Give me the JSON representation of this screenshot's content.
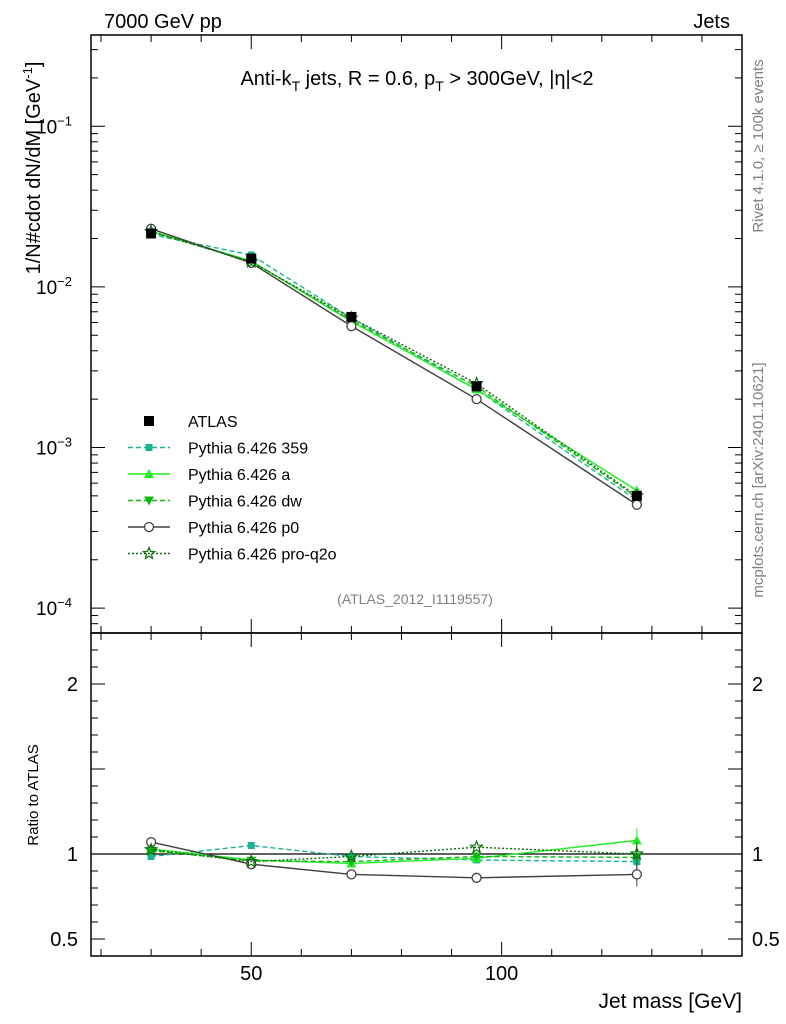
{
  "header": {
    "left": "7000 GeV pp",
    "right": "Jets"
  },
  "side_labels": {
    "rivet": "Rivet 4.1.0, ≥ 100k events",
    "mcplots": "mcplots.cern.ch [arXiv:2401.10621]"
  },
  "colors": {
    "atlas": "#000000",
    "p359": "#19b394",
    "pa": "#22ee22",
    "pdw": "#12b812",
    "pp0": "#404040",
    "pq2o": "#0a6e0a"
  },
  "chart_data": [
    {
      "type": "line",
      "panel": "main",
      "title": "Anti-kT jets, R = 0.6, pT > 300GeV, |η|<2",
      "title_parts": {
        "pre": "Anti-k",
        "sub1": "T",
        "mid": " jets, R = 0.6, p",
        "sub2": "T",
        "post": " > 300GeV, |η|<2"
      },
      "watermark": "(ATLAS_2012_I1119557)",
      "ylabel": "1/N#cdot dN/dM [GeV",
      "ylabel_sup": "-1",
      "ylabel_close": "]",
      "yscale": "log",
      "xlim": [
        18,
        148
      ],
      "ylim": [
        7e-05,
        0.37
      ],
      "ytick_labels": [
        {
          "base": "10",
          "exp": "−1",
          "value": 0.1
        },
        {
          "base": "10",
          "exp": "−2",
          "value": 0.01
        },
        {
          "base": "10",
          "exp": "−3",
          "value": 0.001
        },
        {
          "base": "10",
          "exp": "−4",
          "value": 0.0001
        }
      ],
      "x": [
        30,
        50,
        70,
        95,
        127
      ],
      "series": [
        {
          "name": "ATLAS",
          "key": "atlas",
          "values": [
            0.0215,
            0.015,
            0.0065,
            0.0024,
            0.0005
          ]
        },
        {
          "name": "Pythia 6.426 359",
          "key": "p359",
          "values": [
            0.0212,
            0.0158,
            0.0064,
            0.0023,
            0.00047
          ]
        },
        {
          "name": "Pythia 6.426 a",
          "key": "pa",
          "values": [
            0.0222,
            0.0145,
            0.0061,
            0.0023,
            0.00054
          ]
        },
        {
          "name": "Pythia 6.426 dw",
          "key": "pdw",
          "values": [
            0.022,
            0.0144,
            0.0062,
            0.0024,
            0.00049
          ]
        },
        {
          "name": "Pythia 6.426 p0",
          "key": "pp0",
          "values": [
            0.023,
            0.0141,
            0.0057,
            0.002,
            0.00044
          ]
        },
        {
          "name": "Pythia 6.426 pro-q2o",
          "key": "pq2o",
          "values": [
            0.0221,
            0.0143,
            0.0064,
            0.0025,
            0.0005
          ]
        }
      ]
    },
    {
      "type": "line",
      "panel": "ratio",
      "ylabel": "Ratio to ATLAS",
      "xlabel": "Jet mass [GeV]",
      "xlim": [
        18,
        148
      ],
      "ylim": [
        0.4,
        2.3
      ],
      "xtick_labels": [
        {
          "label": "50",
          "value": 50
        },
        {
          "label": "100",
          "value": 100
        }
      ],
      "ytick_labels": [
        {
          "label": "2",
          "value": 2
        },
        {
          "label": "1",
          "value": 1
        },
        {
          "label": "0.5",
          "value": 0.5
        }
      ],
      "x": [
        30,
        50,
        70,
        95,
        127
      ],
      "series": [
        {
          "name": "Pythia 6.426 359",
          "key": "p359",
          "values": [
            0.985,
            1.05,
            0.985,
            0.965,
            0.955
          ]
        },
        {
          "name": "Pythia 6.426 a",
          "key": "pa",
          "values": [
            1.03,
            0.965,
            0.945,
            0.975,
            1.08
          ]
        },
        {
          "name": "Pythia 6.426 dw",
          "key": "pdw",
          "values": [
            1.02,
            0.96,
            0.955,
            0.985,
            0.98
          ]
        },
        {
          "name": "Pythia 6.426 p0",
          "key": "pp0",
          "values": [
            1.07,
            0.94,
            0.88,
            0.86,
            0.88
          ]
        },
        {
          "name": "Pythia 6.426 pro-q2o",
          "key": "pq2o",
          "values": [
            1.025,
            0.955,
            0.985,
            1.04,
            1.0
          ]
        }
      ]
    }
  ]
}
